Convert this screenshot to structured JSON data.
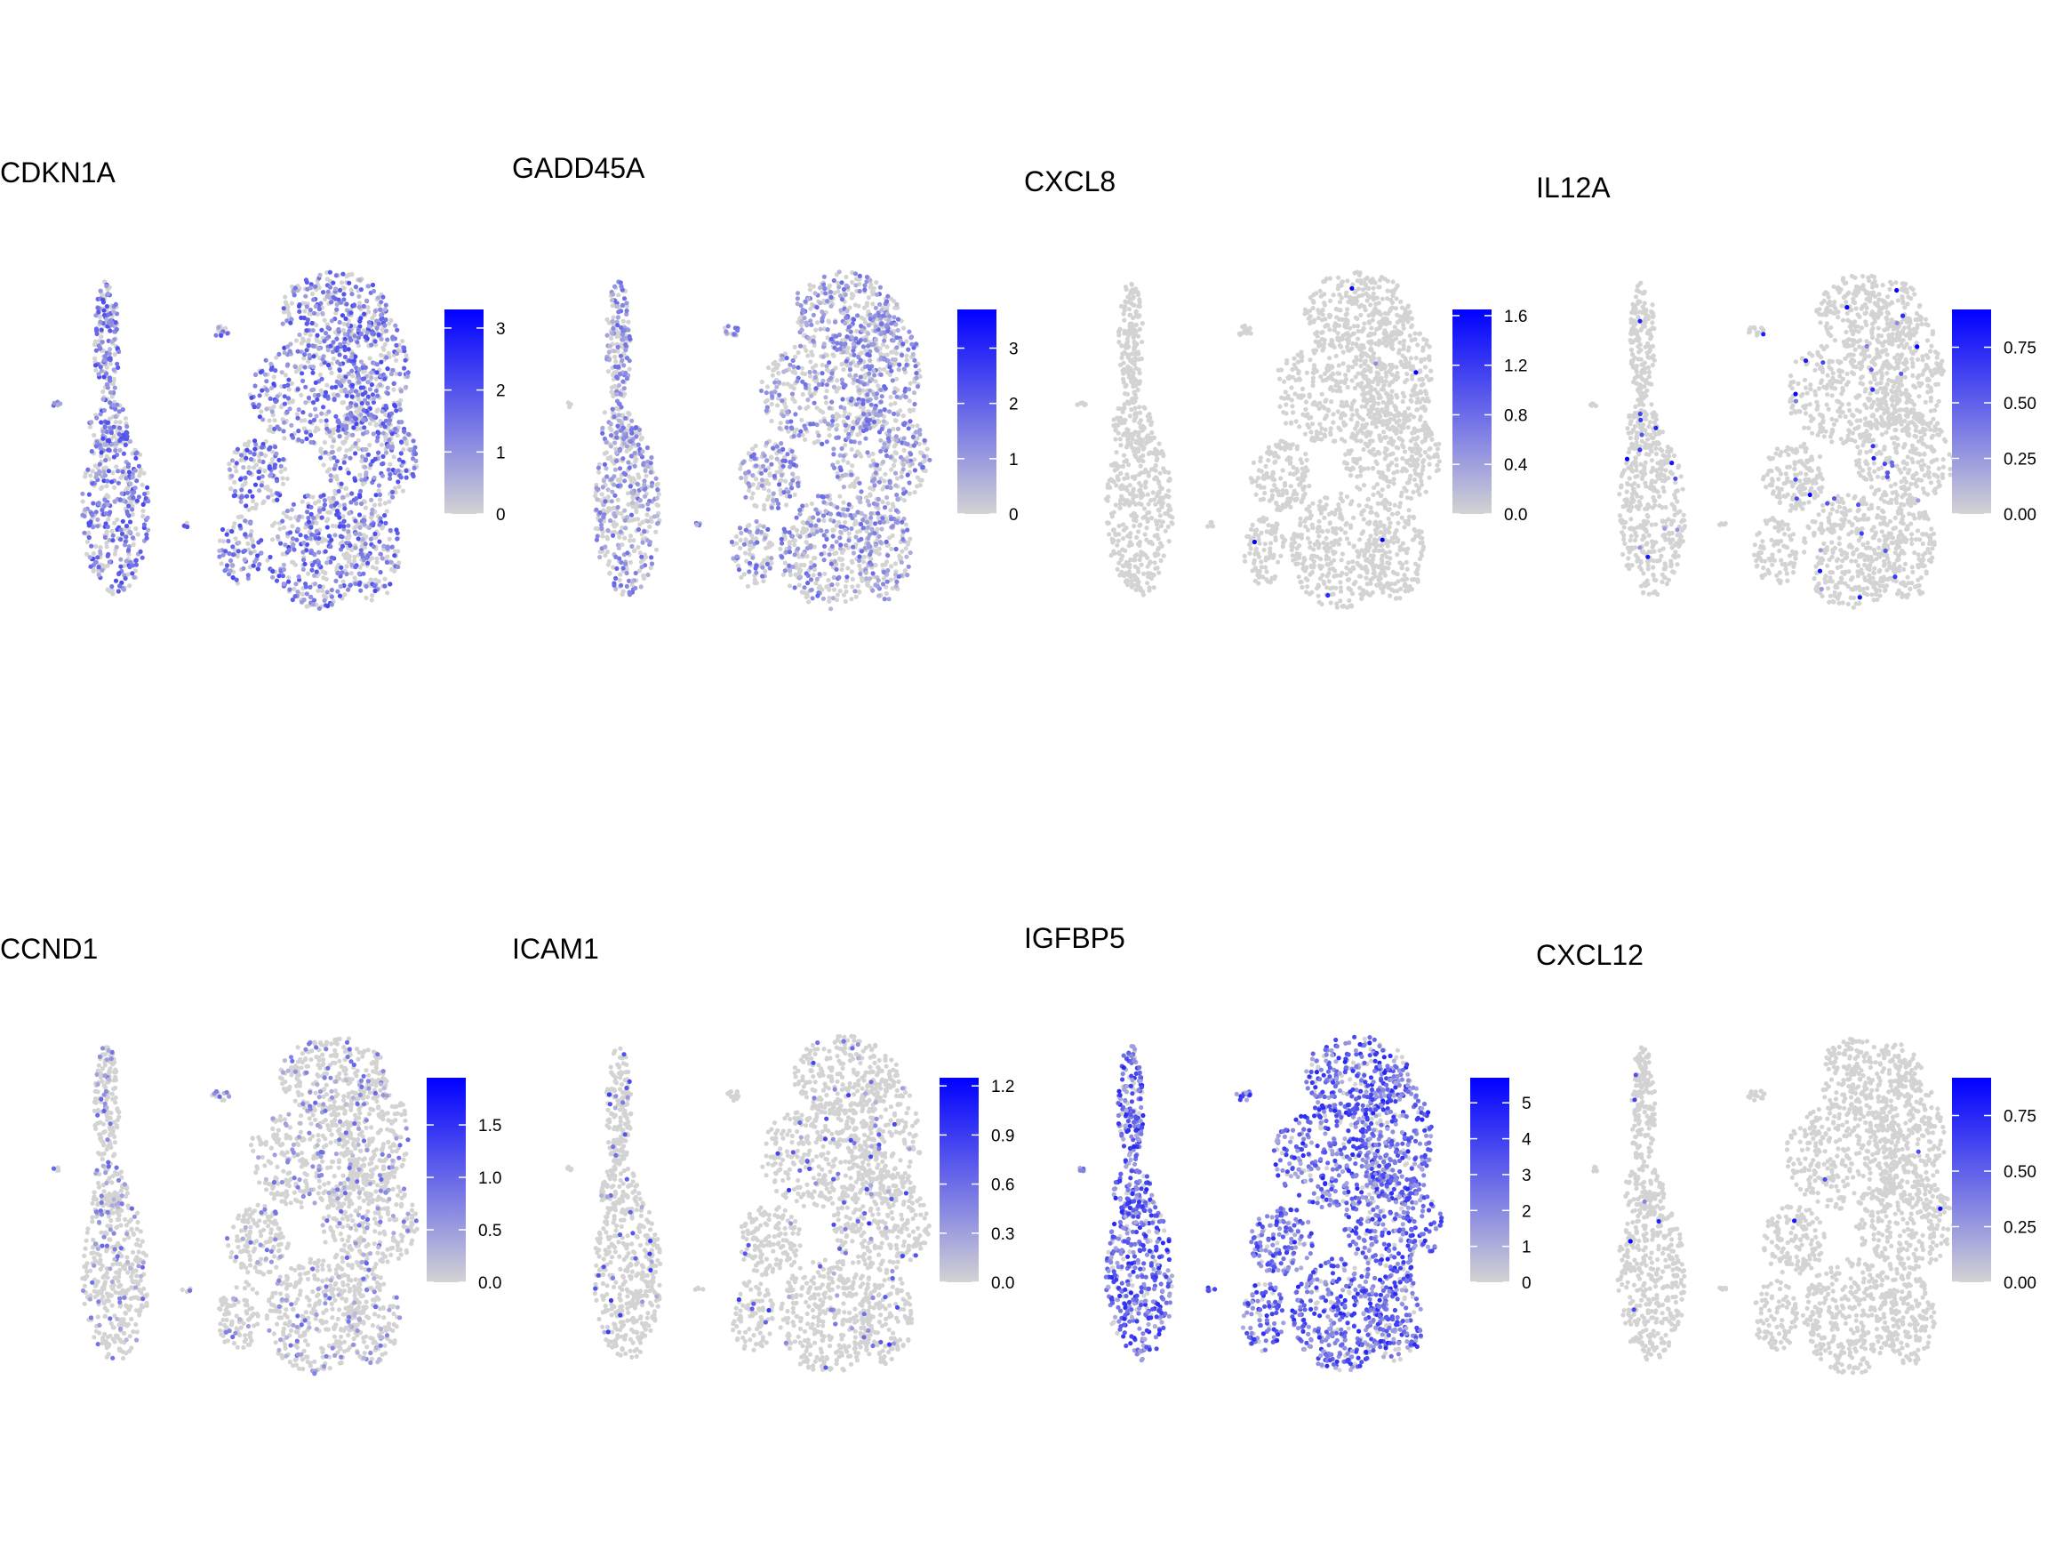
{
  "figure": {
    "panels": [
      {
        "gene": "CDKN1A",
        "scale_max": 3.3,
        "ticks": [
          "0",
          "1",
          "2",
          "3"
        ],
        "tick_values": [
          0,
          1,
          2,
          3
        ],
        "density": 0.55,
        "level": 0.45
      },
      {
        "gene": "GADD45A",
        "scale_max": 3.7,
        "ticks": [
          "0",
          "1",
          "2",
          "3"
        ],
        "tick_values": [
          0,
          1,
          2,
          3
        ],
        "density": 0.45,
        "level": 0.35
      },
      {
        "gene": "CXCL8",
        "scale_max": 1.65,
        "ticks": [
          "0.0",
          "0.4",
          "0.8",
          "1.2",
          "1.6"
        ],
        "tick_values": [
          0,
          0.4,
          0.8,
          1.2,
          1.6
        ],
        "density": 0.004,
        "level": 0.9
      },
      {
        "gene": "IL12A",
        "scale_max": 0.92,
        "ticks": [
          "0.00",
          "0.25",
          "0.50",
          "0.75"
        ],
        "tick_values": [
          0,
          0.25,
          0.5,
          0.75
        ],
        "density": 0.02,
        "level": 0.7
      },
      {
        "gene": "CCND1",
        "scale_max": 1.95,
        "ticks": [
          "0.0",
          "0.5",
          "1.0",
          "1.5"
        ],
        "tick_values": [
          0,
          0.5,
          1.0,
          1.5
        ],
        "density": 0.15,
        "level": 0.35
      },
      {
        "gene": "ICAM1",
        "scale_max": 1.25,
        "ticks": [
          "0.0",
          "0.3",
          "0.6",
          "0.9",
          "1.2"
        ],
        "tick_values": [
          0,
          0.3,
          0.6,
          0.9,
          1.2
        ],
        "density": 0.05,
        "level": 0.5
      },
      {
        "gene": "IGFBP5",
        "scale_max": 5.7,
        "ticks": [
          "0",
          "1",
          "2",
          "3",
          "4",
          "5"
        ],
        "tick_values": [
          0,
          1,
          2,
          3,
          4,
          5
        ],
        "density": 0.85,
        "level": 0.55
      },
      {
        "gene": "CXCL12",
        "scale_max": 0.92,
        "ticks": [
          "0.00",
          "0.25",
          "0.50",
          "0.75"
        ],
        "tick_values": [
          0,
          0.25,
          0.5,
          0.75
        ],
        "density": 0.004,
        "level": 0.9
      }
    ],
    "colors": {
      "low": "#D3D3D3",
      "high": "#0000FF"
    }
  },
  "chart_data": {
    "type": "scatter",
    "description_type": "feature-plot grid (UMAP-style embeddings colored by gene expression)",
    "layout": "2 rows x 4 columns",
    "panels": [
      "CDKN1A",
      "GADD45A",
      "CXCL8",
      "IL12A",
      "CCND1",
      "ICAM1",
      "IGFBP5",
      "CXCL12"
    ],
    "color_scale": {
      "low": "#D3D3D3",
      "high": "#0000FF"
    },
    "legend_ranges": {
      "CDKN1A": [
        0,
        3.3
      ],
      "GADD45A": [
        0,
        3.7
      ],
      "CXCL8": [
        0,
        1.65
      ],
      "IL12A": [
        0,
        0.92
      ],
      "CCND1": [
        0,
        1.95
      ],
      "ICAM1": [
        0,
        1.25
      ],
      "IGFBP5": [
        0,
        5.7
      ],
      "CXCL12": [
        0,
        0.92
      ]
    }
  }
}
